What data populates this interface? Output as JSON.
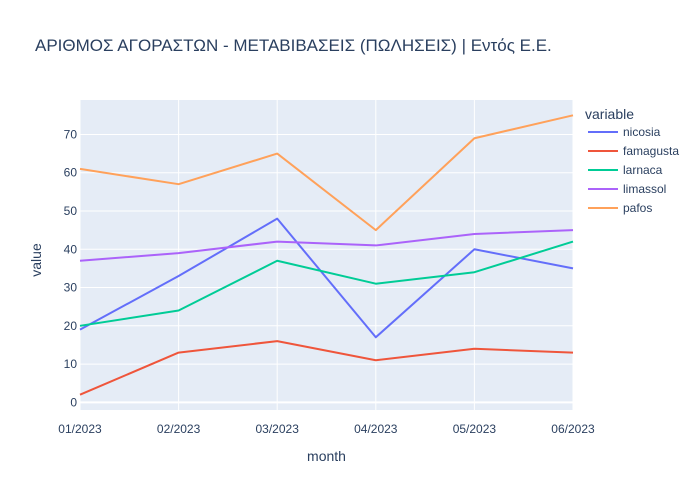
{
  "chart_data": {
    "type": "line",
    "title": "ΑΡΙΘΜΟΣ ΑΓΟΡΑΣΤΩΝ - ΜΕΤΑΒΙΒΑΣΕΙΣ (ΠΩΛΗΣΕΙΣ) | Εντός Ε.Ε.",
    "xlabel": "month",
    "ylabel": "value",
    "categories": [
      "01/2023",
      "02/2023",
      "03/2023",
      "04/2023",
      "05/2023",
      "06/2023"
    ],
    "yticks": [
      0,
      10,
      20,
      30,
      40,
      50,
      60,
      70
    ],
    "ylim": [
      -2,
      79
    ],
    "grid": true,
    "legend": {
      "title": "variable",
      "placement": "right"
    },
    "series": [
      {
        "name": "nicosia",
        "color": "#636efa",
        "values": [
          19,
          33,
          48,
          17,
          40,
          35
        ]
      },
      {
        "name": "famagusta",
        "color": "#ef553b",
        "values": [
          2,
          13,
          16,
          11,
          14,
          13
        ]
      },
      {
        "name": "larnaca",
        "color": "#00cc96",
        "values": [
          20,
          24,
          37,
          31,
          34,
          42
        ]
      },
      {
        "name": "limassol",
        "color": "#ab63fa",
        "values": [
          37,
          39,
          42,
          41,
          44,
          45
        ]
      },
      {
        "name": "pafos",
        "color": "#ffa15a",
        "values": [
          61,
          57,
          65,
          45,
          69,
          75
        ]
      }
    ]
  }
}
